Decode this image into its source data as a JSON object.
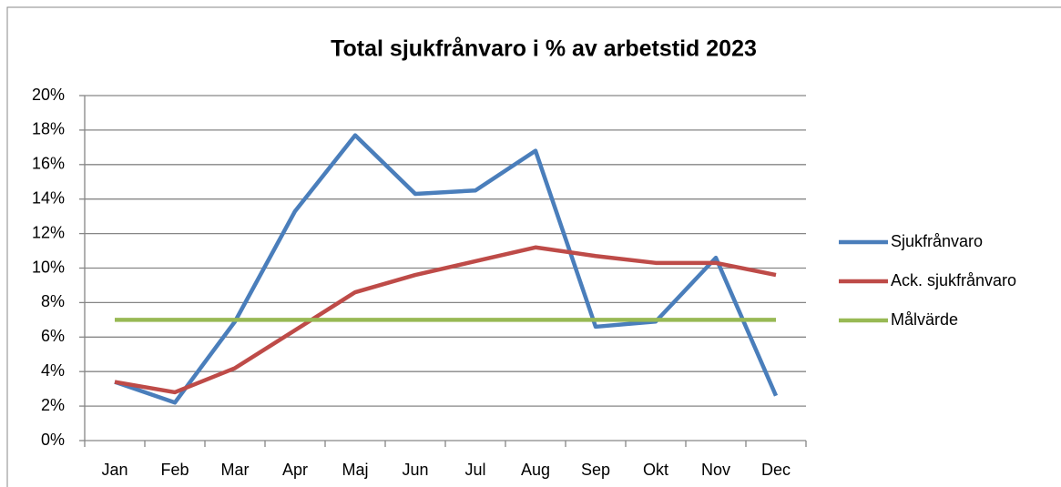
{
  "chart_data": {
    "type": "line",
    "title": "Total sjukfrånvaro i % av arbetstid 2023",
    "categories": [
      "Jan",
      "Feb",
      "Mar",
      "Apr",
      "Maj",
      "Jun",
      "Jul",
      "Aug",
      "Sep",
      "Okt",
      "Nov",
      "Dec"
    ],
    "series": [
      {
        "name": "Sjukfrånvaro",
        "color": "#4a7ebb",
        "values": [
          3.4,
          2.2,
          6.9,
          13.3,
          17.7,
          14.3,
          14.5,
          16.8,
          6.6,
          6.9,
          10.6,
          2.6
        ]
      },
      {
        "name": "Ack. sjukfrånvaro",
        "color": "#be4b48",
        "values": [
          3.4,
          2.8,
          4.2,
          6.4,
          8.6,
          9.6,
          10.4,
          11.2,
          10.7,
          10.3,
          10.3,
          9.6
        ]
      },
      {
        "name": "Målvärde",
        "color": "#98b954",
        "values": [
          7,
          7,
          7,
          7,
          7,
          7,
          7,
          7,
          7,
          7,
          7,
          7
        ]
      }
    ],
    "ylim": [
      0,
      20
    ],
    "yticks": [
      {
        "value": 0,
        "label": "0%"
      },
      {
        "value": 2,
        "label": "2%"
      },
      {
        "value": 4,
        "label": "4%"
      },
      {
        "value": 6,
        "label": "6%"
      },
      {
        "value": 8,
        "label": "8%"
      },
      {
        "value": 10,
        "label": "10%"
      },
      {
        "value": 12,
        "label": "12%"
      },
      {
        "value": 14,
        "label": "14%"
      },
      {
        "value": 16,
        "label": "16%"
      },
      {
        "value": 18,
        "label": "18%"
      },
      {
        "value": 20,
        "label": "20%"
      }
    ],
    "grid": true,
    "legend": "right"
  }
}
